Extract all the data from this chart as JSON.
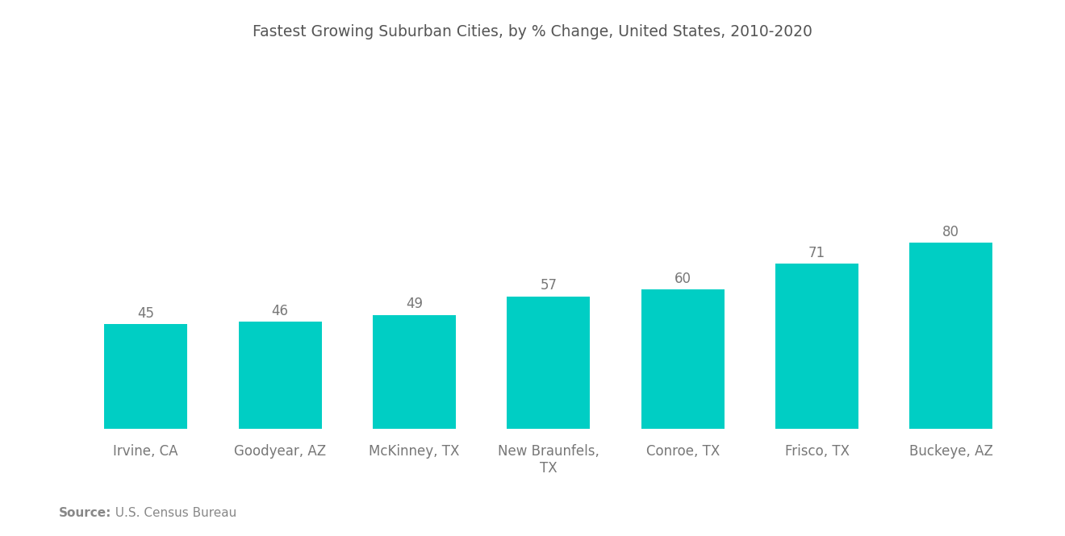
{
  "title": "Fastest Growing Suburban Cities, by % Change, United States, 2010-2020",
  "categories": [
    "Irvine, CA",
    "Goodyear, AZ",
    "McKinney, TX",
    "New Braunfels,\nTX",
    "Conroe, TX",
    "Frisco, TX",
    "Buckeye, AZ"
  ],
  "values": [
    45,
    46,
    49,
    57,
    60,
    71,
    80
  ],
  "bar_color": "#00CEC4",
  "background_color": "#ffffff",
  "source_bold": "Source:",
  "source_rest": "  U.S. Census Bureau",
  "title_fontsize": 13.5,
  "label_fontsize": 12,
  "value_fontsize": 12,
  "source_fontsize": 11,
  "ylim": [
    0,
    120
  ],
  "bar_width": 0.62
}
